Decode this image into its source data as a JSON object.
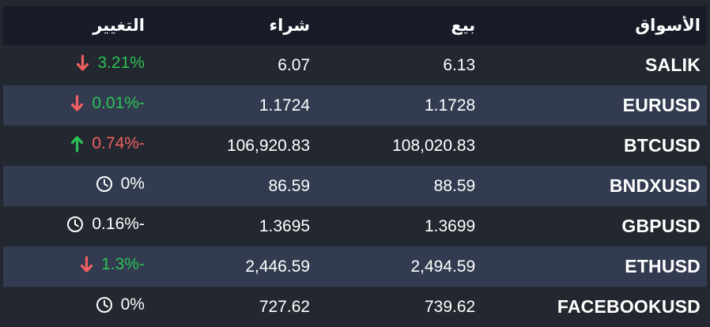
{
  "header": {
    "columns": [
      {
        "key": "market",
        "label": "الأسواق"
      },
      {
        "key": "sell",
        "label": "بيع"
      },
      {
        "key": "buy",
        "label": "شراء"
      },
      {
        "key": "change",
        "label": "التغيير"
      }
    ]
  },
  "rows": [
    {
      "market": "SALIK",
      "sell": "6.13",
      "buy": "6.07",
      "change": "3.21%",
      "icon": "arrow-down",
      "change_color": "green"
    },
    {
      "market": "EURUSD",
      "sell": "1.1728",
      "buy": "1.1724",
      "change": "0.01%-",
      "icon": "arrow-down",
      "change_color": "green"
    },
    {
      "market": "BTCUSD",
      "sell": "108,020.83",
      "buy": "106,920.83",
      "change": "0.74%-",
      "icon": "arrow-up",
      "change_color": "red"
    },
    {
      "market": "BNDXUSD",
      "sell": "88.59",
      "buy": "86.59",
      "change": "0%",
      "icon": "clock",
      "change_color": "white"
    },
    {
      "market": "GBPUSD",
      "sell": "1.3699",
      "buy": "1.3695",
      "change": "0.16%-",
      "icon": "clock",
      "change_color": "white"
    },
    {
      "market": "ETHUSD",
      "sell": "2,494.59",
      "buy": "2,446.59",
      "change": "1.3%-",
      "icon": "arrow-down",
      "change_color": "green"
    },
    {
      "market": "FACEBOOKUSD",
      "sell": "739.62",
      "buy": "727.62",
      "change": "0%",
      "icon": "clock",
      "change_color": "white"
    }
  ],
  "colors": {
    "page_background": "#23272f",
    "header_background": "#181c29",
    "row_alt_background": "#323b50",
    "text": "#ffffff",
    "positive_green": "#2bc155",
    "negative_red": "#f05f5f"
  }
}
